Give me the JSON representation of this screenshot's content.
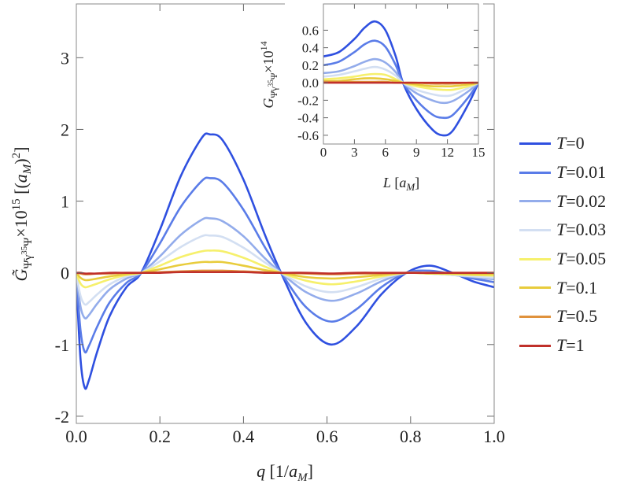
{
  "chart_data": [
    {
      "type": "line",
      "xlabel": [
        "q",
        " [1/",
        "a",
        "M",
        "]"
      ],
      "ylabel": [
        "G̃",
        "Ψ̄γ",
        "35",
        "Ψ",
        "×10",
        "15",
        " [(",
        "a",
        "M",
        ")",
        "2",
        "]"
      ],
      "x": [
        0,
        0.01,
        0.02,
        0.03,
        0.05,
        0.08,
        0.12,
        0.155,
        0.2,
        0.25,
        0.3,
        0.32,
        0.35,
        0.4,
        0.45,
        0.49,
        0.55,
        0.61,
        0.67,
        0.73,
        0.79,
        0.845,
        0.9,
        0.95,
        1.0
      ],
      "xlim": [
        0,
        1
      ],
      "ylim": [
        -2.1,
        3.75
      ],
      "xticks": [
        {
          "value": 0,
          "label": "0.0"
        },
        0.2,
        0.4,
        0.6,
        0.8,
        {
          "value": 1,
          "label": "1.0"
        }
      ],
      "yticks": [
        -2,
        -1,
        0,
        1,
        2,
        3
      ],
      "series": [
        {
          "name": "T=0",
          "color": "#2f50e0",
          "values": [
            -0.1,
            -1.2,
            -1.6,
            -1.5,
            -1.1,
            -0.6,
            -0.2,
            0,
            0.6,
            1.35,
            1.88,
            1.93,
            1.85,
            1.3,
            0.55,
            0,
            -0.7,
            -1.0,
            -0.75,
            -0.3,
            0,
            0.1,
            0,
            -0.12,
            -0.2
          ]
        },
        {
          "name": "T=0.01",
          "color": "#5a7ce8",
          "values": [
            -0.05,
            -0.8,
            -1.1,
            -1.02,
            -0.75,
            -0.41,
            -0.14,
            0,
            0.41,
            0.92,
            1.28,
            1.32,
            1.26,
            0.88,
            0.37,
            0,
            -0.48,
            -0.68,
            -0.51,
            -0.2,
            0,
            0.03,
            -0.02,
            -0.08,
            -0.13
          ]
        },
        {
          "name": "T=0.02",
          "color": "#93aceb",
          "values": [
            -0.03,
            -0.47,
            -0.63,
            -0.59,
            -0.43,
            -0.23,
            -0.08,
            0,
            0.23,
            0.53,
            0.74,
            0.76,
            0.72,
            0.51,
            0.21,
            0,
            -0.27,
            -0.39,
            -0.29,
            -0.12,
            0,
            -0.01,
            -0.03,
            -0.06,
            -0.09
          ]
        },
        {
          "name": "T=0.03",
          "color": "#d3dff2",
          "values": [
            -0.02,
            -0.32,
            -0.44,
            -0.41,
            -0.3,
            -0.16,
            -0.05,
            0,
            0.16,
            0.36,
            0.51,
            0.52,
            0.5,
            0.35,
            0.15,
            0,
            -0.19,
            -0.27,
            -0.2,
            -0.08,
            0,
            -0.01,
            -0.03,
            -0.05,
            -0.07
          ]
        },
        {
          "name": "T=0.05",
          "color": "#f6f06c",
          "values": [
            -0.01,
            -0.15,
            -0.2,
            -0.19,
            -0.15,
            -0.09,
            -0.03,
            0,
            0.1,
            0.22,
            0.3,
            0.31,
            0.3,
            0.21,
            0.09,
            0,
            -0.11,
            -0.16,
            -0.12,
            -0.05,
            0,
            -0.01,
            -0.02,
            -0.03,
            -0.04
          ]
        },
        {
          "name": "T=0.1",
          "color": "#e8cc3c",
          "values": [
            0,
            -0.07,
            -0.1,
            -0.1,
            -0.08,
            -0.05,
            -0.02,
            0,
            0.05,
            0.11,
            0.15,
            0.15,
            0.15,
            0.1,
            0.04,
            0,
            -0.06,
            -0.08,
            -0.06,
            -0.03,
            0,
            -0.01,
            -0.01,
            -0.02,
            -0.02
          ]
        },
        {
          "name": "T=0.5",
          "color": "#e0923c",
          "values": [
            0,
            -0.01,
            -0.02,
            -0.02,
            -0.01,
            -0.01,
            0,
            0,
            0.01,
            0.02,
            0.03,
            0.03,
            0.03,
            0.02,
            0.01,
            0,
            -0.01,
            -0.02,
            -0.01,
            -0.01,
            0,
            0,
            0,
            0,
            0
          ]
        },
        {
          "name": "T=1",
          "color": "#c0302a",
          "values": [
            0,
            0,
            -0.01,
            -0.01,
            -0.01,
            0,
            0,
            0,
            0,
            0.01,
            0.01,
            0.01,
            0.01,
            0.01,
            0,
            0,
            0,
            -0.01,
            0,
            0,
            0,
            0,
            0,
            0,
            0
          ]
        }
      ]
    },
    {
      "type": "line",
      "xlabel": [
        "L",
        " [",
        "a",
        "M",
        "]"
      ],
      "ylabel": [
        "G",
        "Ψ̄γ",
        "35",
        "Ψ",
        "×10",
        "14"
      ],
      "x": [
        0,
        1.5,
        3,
        4,
        5,
        6,
        7,
        7.7,
        9,
        10.5,
        11.5,
        12.5,
        14,
        15
      ],
      "xlim": [
        0,
        15
      ],
      "ylim": [
        -0.7,
        0.9
      ],
      "xticks": [
        0,
        3,
        6,
        9,
        12,
        15
      ],
      "yticks": [
        -0.6,
        -0.4,
        -0.2,
        {
          "value": 0,
          "label": "0.0"
        },
        0.2,
        0.4,
        0.6
      ],
      "series": [
        {
          "color": "#2f50e0",
          "values": [
            0.3,
            0.35,
            0.5,
            0.63,
            0.7,
            0.6,
            0.3,
            0,
            -0.3,
            -0.53,
            -0.6,
            -0.55,
            -0.25,
            0
          ]
        },
        {
          "color": "#5a7ce8",
          "values": [
            0.2,
            0.24,
            0.35,
            0.44,
            0.48,
            0.41,
            0.2,
            0,
            -0.2,
            -0.36,
            -0.4,
            -0.37,
            -0.17,
            0
          ]
        },
        {
          "color": "#93aceb",
          "values": [
            0.11,
            0.13,
            0.19,
            0.24,
            0.27,
            0.23,
            0.12,
            0,
            -0.12,
            -0.2,
            -0.23,
            -0.21,
            -0.1,
            0
          ]
        },
        {
          "color": "#d3dff2",
          "values": [
            0.07,
            0.09,
            0.13,
            0.16,
            0.18,
            0.15,
            0.08,
            0,
            -0.08,
            -0.13,
            -0.15,
            -0.14,
            -0.06,
            0
          ]
        },
        {
          "color": "#f6f06c",
          "values": [
            0.04,
            0.05,
            0.07,
            0.09,
            0.1,
            0.09,
            0.04,
            0,
            -0.04,
            -0.07,
            -0.08,
            -0.08,
            -0.04,
            0
          ]
        },
        {
          "color": "#e8cc3c",
          "values": [
            0.02,
            0.02,
            0.04,
            0.05,
            0.05,
            0.04,
            0.02,
            0,
            -0.02,
            -0.04,
            -0.04,
            -0.04,
            -0.02,
            0
          ]
        },
        {
          "color": "#e0923c",
          "values": [
            0.01,
            0.01,
            0.01,
            0.01,
            0.01,
            0.01,
            0,
            0,
            0,
            -0.01,
            -0.01,
            -0.01,
            0,
            0
          ]
        },
        {
          "color": "#c0302a",
          "values": [
            0,
            0,
            0,
            0,
            0,
            0,
            0,
            0,
            0,
            0,
            0,
            0,
            0,
            0
          ]
        }
      ]
    }
  ]
}
